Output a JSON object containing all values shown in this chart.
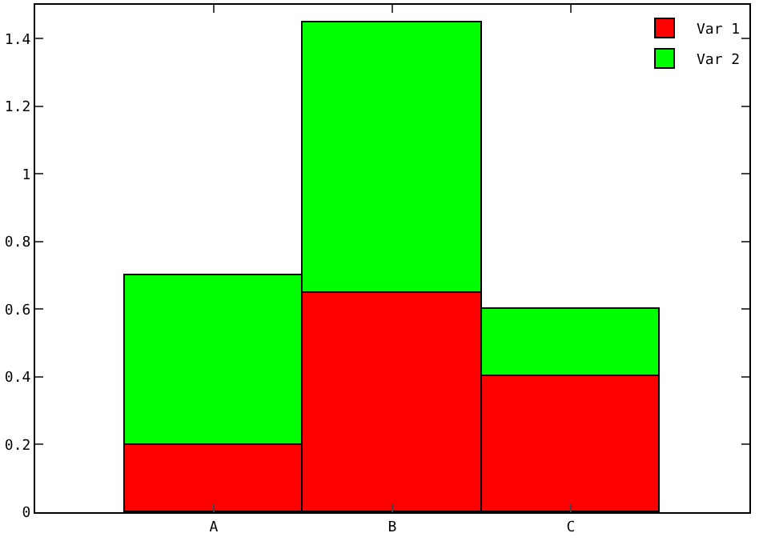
{
  "chart_data": {
    "type": "bar",
    "stacked": true,
    "categories": [
      "A",
      "B",
      "C"
    ],
    "series": [
      {
        "name": "Var 1",
        "color": "#ff0000",
        "values": [
          0.2,
          0.65,
          0.4
        ]
      },
      {
        "name": "Var 2",
        "color": "#00ff00",
        "values": [
          0.5,
          0.8,
          0.2
        ]
      }
    ],
    "ylim": [
      0,
      1.5
    ],
    "yticks": [
      0,
      0.2,
      0.4,
      0.6,
      0.8,
      1,
      1.2,
      1.4
    ],
    "grid": false,
    "legend": "top right"
  }
}
